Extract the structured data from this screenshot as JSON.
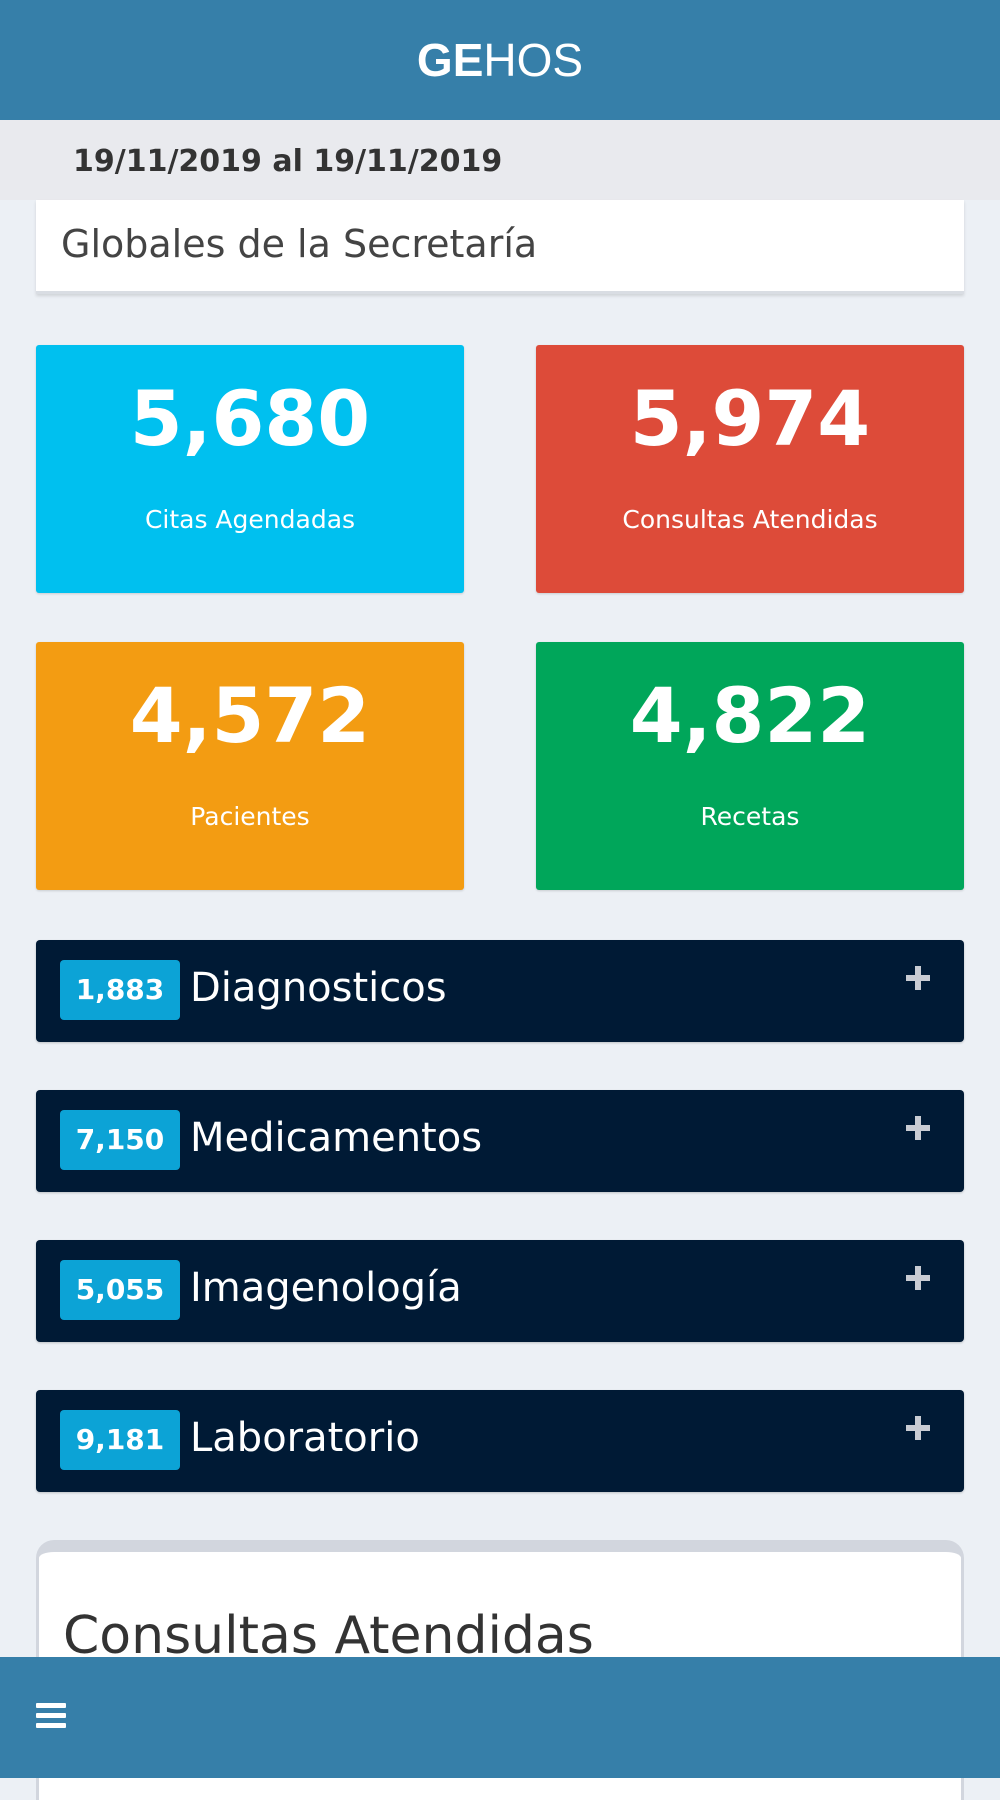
{
  "header": {
    "logo_bold": "GE",
    "logo_light": "HOS"
  },
  "date_range": "19/11/2019 al 19/11/2019",
  "section_title": "Globales de la Secretaría",
  "stats": {
    "citas": {
      "value": "5,680",
      "label": "Citas Agendadas",
      "color": "#00c0ef"
    },
    "consultas": {
      "value": "5,974",
      "label": "Consultas Atendidas",
      "color": "#dd4b39"
    },
    "pacientes": {
      "value": "4,572",
      "label": "Pacientes",
      "color": "#f39c12"
    },
    "recetas": {
      "value": "4,822",
      "label": "Recetas",
      "color": "#00a65a"
    }
  },
  "accordion": {
    "diagnosticos": {
      "count": "1,883",
      "label": "Diagnosticos",
      "icon": "plus-icon"
    },
    "medicamentos": {
      "count": "7,150",
      "label": "Medicamentos",
      "icon": "plus-icon"
    },
    "imagenologia": {
      "count": "5,055",
      "label": "Imagenología",
      "icon": "plus-icon"
    },
    "laboratorio": {
      "count": "9,181",
      "label": "Laboratorio",
      "icon": "plus-icon"
    }
  },
  "chart_card": {
    "title": "Consultas Atendidas"
  },
  "bottom_nav": {
    "menu_icon": "hamburger-menu-icon"
  },
  "colors": {
    "primary": "#367fa9",
    "dark_row": "#001a35",
    "badge": "#0ca3d6"
  }
}
